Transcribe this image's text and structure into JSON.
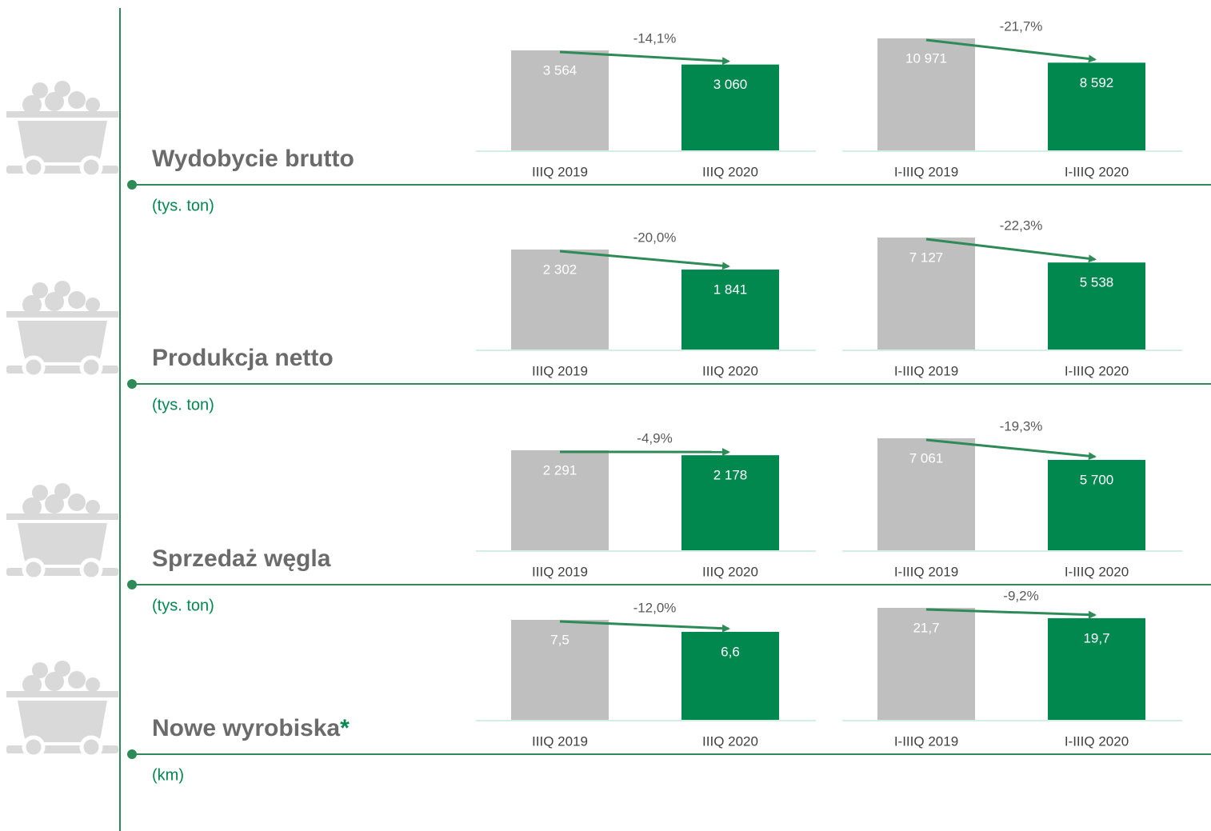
{
  "sections": [
    {
      "title": "Wydobycie brutto",
      "unit": "(tys. ton)"
    },
    {
      "title": "Produkcja netto",
      "unit": "(tys. ton)"
    },
    {
      "title": "Sprzedaż węgla",
      "unit": "(tys. ton)"
    },
    {
      "title": "Nowe wyrobiska",
      "title_marker": "*",
      "unit": "(km)"
    }
  ],
  "chart_data": [
    {
      "type": "bar",
      "categories": [
        "IIIQ 2019",
        "IIIQ 2020"
      ],
      "values": [
        3564,
        3060
      ],
      "value_labels": [
        "3 564",
        "3 060"
      ],
      "colors": [
        "#bfbfbf",
        "#00884f"
      ],
      "annotation": "-14,1%"
    },
    {
      "type": "bar",
      "categories": [
        "I-IIIQ 2019",
        "I-IIIQ 2020"
      ],
      "values": [
        10971,
        8592
      ],
      "value_labels": [
        "10 971",
        "8 592"
      ],
      "colors": [
        "#bfbfbf",
        "#00884f"
      ],
      "annotation": "-21,7%"
    },
    {
      "type": "bar",
      "categories": [
        "IIIQ 2019",
        "IIIQ 2020"
      ],
      "values": [
        2302,
        1841
      ],
      "value_labels": [
        "2 302",
        "1 841"
      ],
      "colors": [
        "#bfbfbf",
        "#00884f"
      ],
      "annotation": "-20,0%"
    },
    {
      "type": "bar",
      "categories": [
        "I-IIIQ 2019",
        "I-IIIQ 2020"
      ],
      "values": [
        7127,
        5538
      ],
      "value_labels": [
        "7 127",
        "5 538"
      ],
      "colors": [
        "#bfbfbf",
        "#00884f"
      ],
      "annotation": "-22,3%"
    },
    {
      "type": "bar",
      "categories": [
        "IIIQ 2019",
        "IIIQ 2020"
      ],
      "values": [
        2291,
        2178
      ],
      "value_labels": [
        "2 291",
        "2 178"
      ],
      "colors": [
        "#bfbfbf",
        "#00884f"
      ],
      "annotation": "-4,9%"
    },
    {
      "type": "bar",
      "categories": [
        "I-IIIQ 2019",
        "I-IIIQ 2020"
      ],
      "values": [
        7061,
        5700
      ],
      "value_labels": [
        "7 061",
        "5 700"
      ],
      "colors": [
        "#bfbfbf",
        "#00884f"
      ],
      "annotation": "-19,3%"
    },
    {
      "type": "bar",
      "categories": [
        "IIIQ 2019",
        "IIIQ 2020"
      ],
      "values": [
        7.5,
        6.6
      ],
      "value_labels": [
        "7,5",
        "6,6"
      ],
      "colors": [
        "#bfbfbf",
        "#00884f"
      ],
      "annotation": "-12,0%"
    },
    {
      "type": "bar",
      "categories": [
        "I-IIIQ 2019",
        "I-IIIQ 2020"
      ],
      "values": [
        21.7,
        19.7
      ],
      "value_labels": [
        "21,7",
        "19,7"
      ],
      "colors": [
        "#bfbfbf",
        "#00884f"
      ],
      "annotation": "-9,2%"
    }
  ]
}
